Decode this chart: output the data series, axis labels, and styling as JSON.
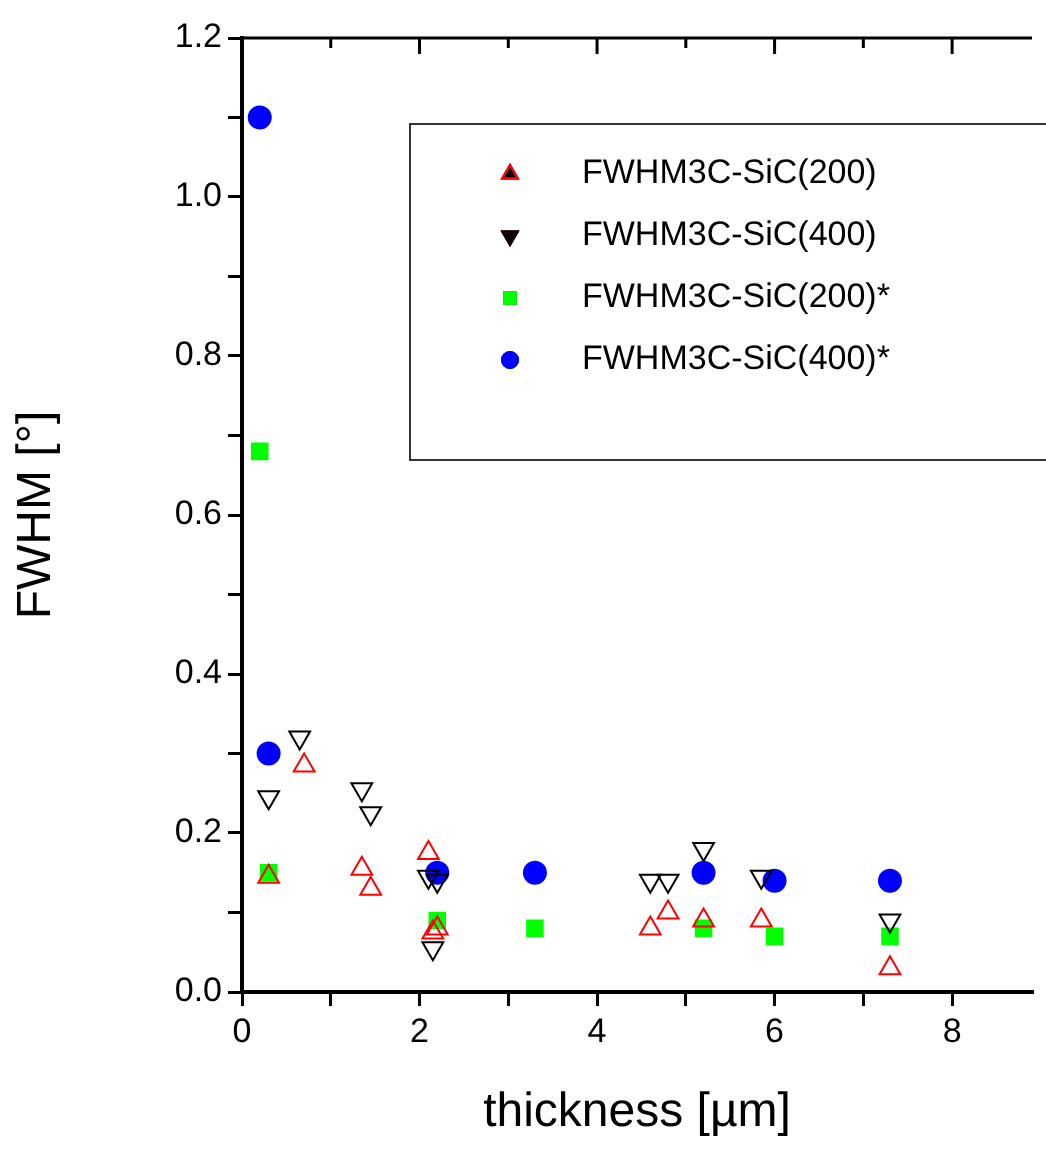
{
  "chart_data": {
    "type": "scatter",
    "xlabel": "thickness [µm]",
    "ylabel": "FWHM [°]",
    "xlim": [
      0,
      8.9
    ],
    "xticks": [
      0,
      {
        "value": 1,
        "label": null
      },
      2,
      {
        "value": 3,
        "label": null
      },
      4,
      {
        "value": 5,
        "label": null
      },
      6,
      {
        "value": 7,
        "label": null
      },
      8
    ],
    "ylim": [
      0,
      1.2
    ],
    "yticks": [
      {
        "value": 0,
        "label": "0.0"
      },
      {
        "value": 0.1,
        "label": null
      },
      {
        "value": 0.2,
        "label": "0.2"
      },
      {
        "value": 0.3,
        "label": null
      },
      {
        "value": 0.4,
        "label": "0.4"
      },
      {
        "value": 0.5,
        "label": null
      },
      {
        "value": 0.6,
        "label": "0.6"
      },
      {
        "value": 0.7,
        "label": null
      },
      {
        "value": 0.8,
        "label": "0.8"
      },
      {
        "value": 0.9,
        "label": null
      },
      {
        "value": 1.0,
        "label": "1.0"
      },
      {
        "value": 1.1,
        "label": null
      },
      {
        "value": 1.2,
        "label": "1.2"
      }
    ],
    "grid": false,
    "legend": "top right",
    "series": [
      {
        "name": "FWHM3C-SiC(200)",
        "color": "#ff0000",
        "marker": "triangle",
        "x": [
          0.3,
          0.7,
          1.35,
          1.45,
          2.1,
          2.15,
          2.2,
          4.6,
          4.8,
          5.2,
          5.85,
          7.3
        ],
        "values": [
          0.145,
          0.285,
          0.155,
          0.13,
          0.175,
          0.075,
          0.08,
          0.08,
          0.1,
          0.09,
          0.09,
          0.03
        ]
      },
      {
        "name": "FWHM3C-SiC(400)",
        "color": "#000000",
        "marker": "triangle_down",
        "x": [
          0.3,
          0.65,
          1.35,
          1.45,
          2.1,
          2.15,
          2.2,
          4.6,
          4.8,
          5.2,
          5.85,
          7.3
        ],
        "values": [
          0.245,
          0.32,
          0.255,
          0.225,
          0.145,
          0.055,
          0.14,
          0.14,
          0.14,
          0.18,
          0.145,
          0.09
        ]
      },
      {
        "name": "FWHM3C-SiC(200)*",
        "color": "#00ff00",
        "marker": "square",
        "x": [
          0.2,
          0.3,
          2.2,
          3.3,
          5.2,
          6.0,
          7.3
        ],
        "values": [
          0.68,
          0.15,
          0.09,
          0.08,
          0.08,
          0.07,
          0.07
        ]
      },
      {
        "name": "FWHM3C-SiC(400)*",
        "color": "#0000ff",
        "marker": "circle",
        "x": [
          0.2,
          0.3,
          2.2,
          3.3,
          5.2,
          6.0,
          7.3
        ],
        "values": [
          1.1,
          0.3,
          0.15,
          0.15,
          0.15,
          0.14,
          0.14
        ]
      }
    ]
  }
}
